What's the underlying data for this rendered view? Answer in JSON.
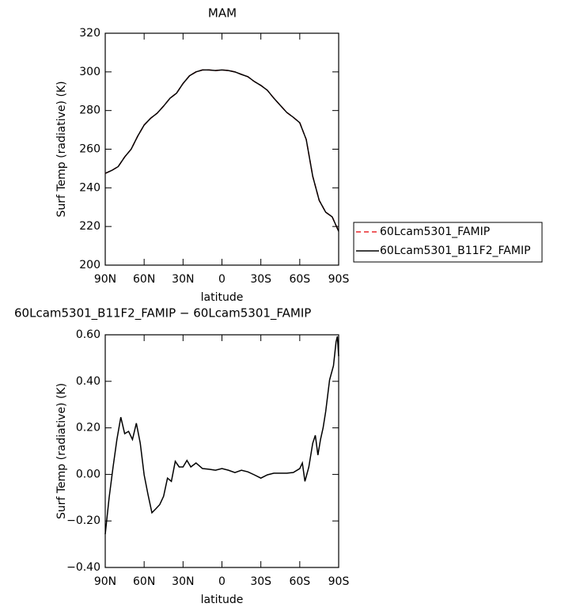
{
  "chart_data": [
    {
      "type": "line",
      "title": "MAM",
      "xlabel": "latitude",
      "ylabel": "Surf Temp (radiative) (K)",
      "x": [
        90,
        85,
        80,
        75,
        70,
        65,
        60,
        55,
        50,
        45,
        40,
        35,
        30,
        25,
        20,
        15,
        10,
        5,
        0,
        -5,
        -10,
        -15,
        -20,
        -25,
        -30,
        -35,
        -40,
        -45,
        -50,
        -55,
        -60,
        -65,
        -70,
        -75,
        -80,
        -85,
        -90
      ],
      "xlim": [
        90,
        -90
      ],
      "xticks": [
        {
          "value": 90,
          "label": "90N"
        },
        {
          "value": 60,
          "label": "60N"
        },
        {
          "value": 30,
          "label": "30N"
        },
        0,
        {
          "value": -30,
          "label": "30S"
        },
        {
          "value": -60,
          "label": "60S"
        },
        {
          "value": -90,
          "label": "90S"
        }
      ],
      "ylim": [
        200,
        320
      ],
      "yticks": [
        200,
        220,
        240,
        260,
        280,
        300,
        320
      ],
      "series": [
        {
          "name": "60Lcam5301_FAMIP",
          "color": "#e8262a",
          "dash": true,
          "values": [
            247.5,
            249,
            251,
            256,
            260,
            266.7,
            272.5,
            276,
            278.6,
            282.3,
            286.4,
            289,
            294,
            298,
            300,
            301,
            301,
            300.7,
            301,
            300.7,
            300,
            298.7,
            297.5,
            295,
            293,
            290.5,
            286.4,
            282.7,
            279,
            276.5,
            273.7,
            265,
            246,
            233.5,
            227.4,
            225,
            217.5
          ]
        },
        {
          "name": "60Lcam5301_B11F2_FAMIP",
          "color": "#000000",
          "dash": false,
          "values": [
            247.5,
            249,
            251,
            256,
            260,
            266.7,
            272.5,
            276,
            278.6,
            282.3,
            286.4,
            289,
            294,
            298,
            300,
            301,
            301,
            300.7,
            301,
            300.7,
            300,
            298.7,
            297.5,
            295,
            293,
            290.5,
            286.4,
            282.7,
            279,
            276.5,
            273.7,
            265,
            246,
            233.5,
            227.4,
            225,
            217.5
          ]
        }
      ]
    },
    {
      "type": "line",
      "title": "60Lcam5301_B11F2_FAMIP − 60Lcam5301_FAMIP",
      "xlabel": "latitude",
      "ylabel": "Surf Temp (radiative) (K)",
      "x": [
        90,
        87,
        84,
        81,
        78,
        75,
        72,
        69,
        66,
        63,
        60,
        57,
        54,
        51,
        48,
        45,
        42,
        39,
        36,
        33,
        30,
        27,
        24,
        20,
        15,
        10,
        5,
        0,
        -5,
        -10,
        -15,
        -20,
        -25,
        -30,
        -35,
        -40,
        -45,
        -50,
        -55,
        -60,
        -62,
        -64,
        -67,
        -70,
        -72,
        -74,
        -76,
        -78,
        -80,
        -83,
        -86,
        -88,
        -89,
        -90
      ],
      "xlim": [
        90,
        -90
      ],
      "xticks": [
        {
          "value": 90,
          "label": "90N"
        },
        {
          "value": 60,
          "label": "60N"
        },
        {
          "value": 30,
          "label": "30N"
        },
        0,
        {
          "value": -30,
          "label": "30S"
        },
        {
          "value": -60,
          "label": "60S"
        },
        {
          "value": -90,
          "label": "90S"
        }
      ],
      "ylim": [
        -0.4,
        0.6
      ],
      "yticks": [
        {
          "value": -0.4,
          "label": "−0.40"
        },
        {
          "value": -0.2,
          "label": "−0.20"
        },
        {
          "value": 0,
          "label": "0.00"
        },
        {
          "value": 0.2,
          "label": "0.20"
        },
        {
          "value": 0.4,
          "label": "0.40"
        },
        {
          "value": 0.6,
          "label": "0.60"
        }
      ],
      "series": [
        {
          "color": "#000000",
          "dash": false,
          "values": [
            -0.257,
            -0.1,
            0.03,
            0.15,
            0.246,
            0.175,
            0.185,
            0.15,
            0.22,
            0.134,
            -0.002,
            -0.087,
            -0.165,
            -0.148,
            -0.13,
            -0.094,
            -0.016,
            -0.03,
            0.056,
            0.032,
            0.032,
            0.06,
            0.032,
            0.049,
            0.025,
            0.022,
            0.018,
            0.025,
            0.018,
            0.008,
            0.018,
            0.011,
            -0.002,
            -0.016,
            -0.002,
            0.005,
            0.005,
            0.005,
            0.008,
            0.025,
            0.049,
            -0.03,
            0.032,
            0.134,
            0.168,
            0.083,
            0.15,
            0.2,
            0.27,
            0.406,
            0.467,
            0.57,
            0.593,
            0.508
          ]
        }
      ]
    }
  ]
}
